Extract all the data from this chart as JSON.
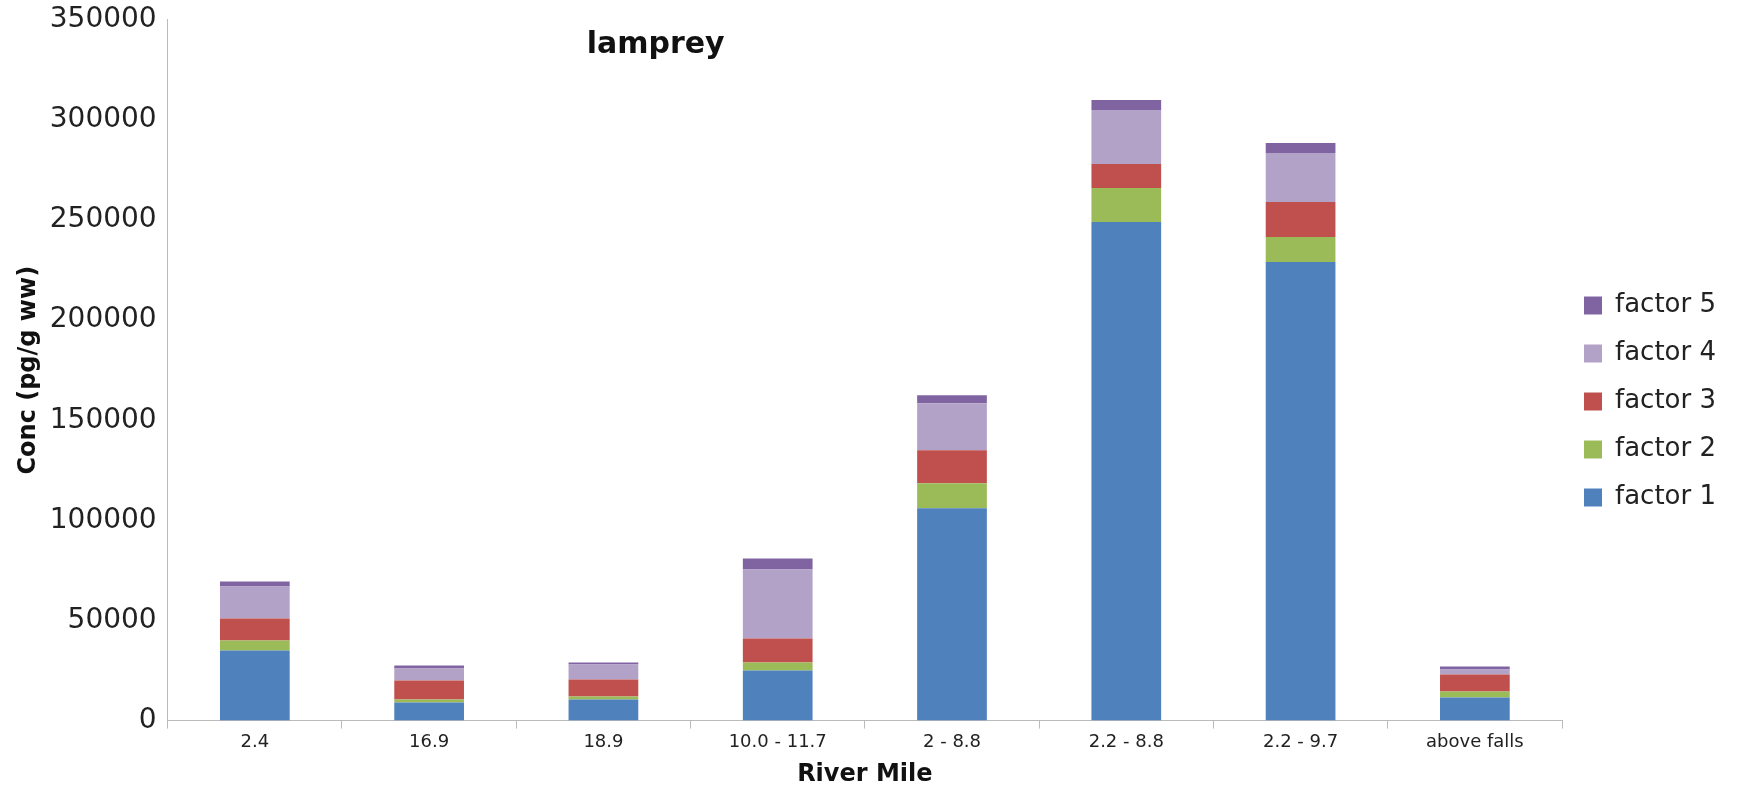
{
  "chart_data": {
    "type": "bar",
    "title": "lamprey",
    "xlabel": "River Mile",
    "ylabel": "Conc (pg/g ww)",
    "categories": [
      "2.4",
      "16.9",
      "18.9",
      "10.0 - 11.7",
      "2 - 8.8",
      "2.2 - 8.8",
      "2.2 - 9.7",
      "above falls"
    ],
    "stacked": true,
    "ylim": [
      0,
      350000
    ],
    "yticks": [
      0,
      50000,
      100000,
      150000,
      200000,
      250000,
      300000,
      350000
    ],
    "grid": false,
    "legend": "right",
    "series": [
      {
        "name": "factor 1",
        "color": "#4f81bd",
        "values": [
          35000,
          9000,
          10500,
          25000,
          106000,
          249000,
          229000,
          11500
        ]
      },
      {
        "name": "factor 2",
        "color": "#9bbb59",
        "values": [
          5000,
          1500,
          1500,
          4000,
          12500,
          17000,
          12500,
          3000
        ]
      },
      {
        "name": "factor 3",
        "color": "#c0504d",
        "values": [
          11000,
          9500,
          8500,
          12000,
          16500,
          12000,
          17500,
          8500
        ]
      },
      {
        "name": "factor 4",
        "color": "#b3a2c7",
        "values": [
          16000,
          6000,
          7500,
          34500,
          23500,
          27000,
          24500,
          2500
        ]
      },
      {
        "name": "factor 5",
        "color": "#8064a2",
        "values": [
          2500,
          1500,
          1000,
          5500,
          4000,
          5000,
          5000,
          1500
        ]
      }
    ]
  }
}
